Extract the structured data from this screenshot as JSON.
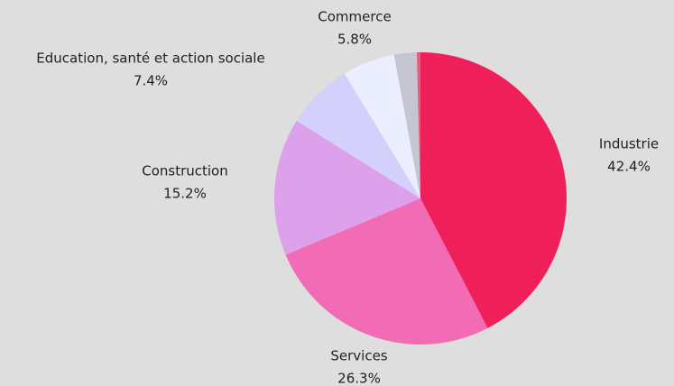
{
  "chart_data": {
    "type": "pie",
    "categories": [
      "Industrie",
      "Services",
      "Construction",
      "Education, santé et action sociale",
      "Commerce",
      null,
      null
    ],
    "values": [
      42.4,
      26.3,
      15.2,
      7.4,
      5.8,
      2.5,
      0.4
    ],
    "value_labels": [
      "42.4%",
      "26.3%",
      "15.2%",
      "7.4%",
      "5.8%",
      null,
      null
    ],
    "colors": [
      "#ef1f5a",
      "#f26bb5",
      "#dda0ea",
      "#d3d0fb",
      "#eaeefe",
      "#c5c6d1",
      "#e0607a"
    ]
  }
}
